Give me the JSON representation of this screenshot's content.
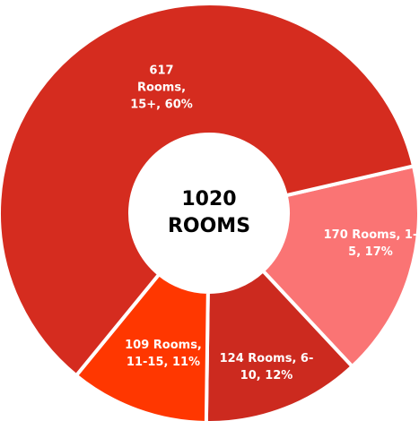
{
  "chart_data": {
    "type": "donut",
    "values": [
      170,
      124,
      109,
      617
    ],
    "value_labels": [
      "170 Rooms, 1-5, 17%",
      "124 Rooms, 6-10, 12%",
      "109 Rooms, 11-15, 11%",
      "617 Rooms, 15+, 60%"
    ],
    "colors": [
      "#fa7474",
      "#cc2a1f",
      "#ff3700",
      "#d52c1f"
    ],
    "total": 1020,
    "total_label": "ROOMS"
  }
}
